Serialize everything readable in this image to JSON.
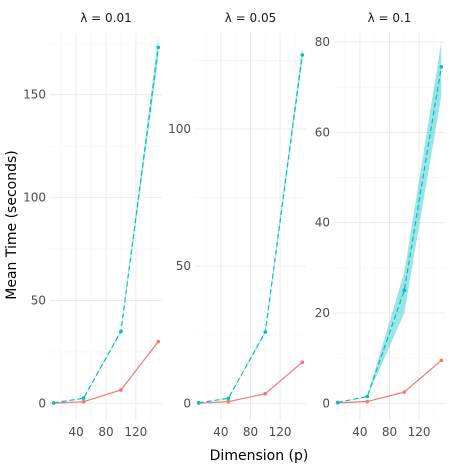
{
  "chart_data": {
    "type": "line",
    "xlabel": "Dimension (p)",
    "ylabel": "Mean Time (seconds)",
    "x_ticks": [
      40,
      80,
      120
    ],
    "panels": [
      {
        "title": "λ = 0.01",
        "ylim": [
          0,
          180
        ],
        "y_ticks": [
          0,
          50,
          100,
          150
        ],
        "series": [
          {
            "color": "#F8766D",
            "linestyle": "solid",
            "x": [
              10,
              50,
              100,
              150
            ],
            "y": [
              0.1,
              0.8,
              6.5,
              30.0
            ],
            "band": null
          },
          {
            "color": "#00BFC4",
            "linestyle": "dashed",
            "x": [
              10,
              50,
              100,
              150
            ],
            "y": [
              0.2,
              2.5,
              35.0,
              173.0
            ],
            "band": {
              "lower": [
                0.2,
                2.4,
                34.5,
                168.0
              ],
              "upper": [
                0.2,
                2.6,
                35.5,
                178.0
              ]
            }
          }
        ]
      },
      {
        "title": "λ = 0.05",
        "ylim": [
          0,
          135
        ],
        "y_ticks": [
          0,
          50,
          100
        ],
        "series": [
          {
            "color": "#F8766D",
            "linestyle": "solid",
            "x": [
              10,
              50,
              100,
              150
            ],
            "y": [
              0.1,
              0.6,
              3.5,
              15.0
            ],
            "band": null
          },
          {
            "color": "#00BFC4",
            "linestyle": "dashed",
            "x": [
              10,
              50,
              100,
              150
            ],
            "y": [
              0.2,
              1.8,
              26.0,
              127.0
            ],
            "band": {
              "lower": [
                0.2,
                1.7,
                25.5,
                125.0
              ],
              "upper": [
                0.2,
                1.9,
                26.5,
                130.0
              ]
            }
          }
        ]
      },
      {
        "title": "λ = 0.1",
        "ylim": [
          0,
          82
        ],
        "y_ticks": [
          0,
          20,
          40,
          60,
          80
        ],
        "series": [
          {
            "color": "#F8766D",
            "linestyle": "solid",
            "x": [
              10,
              50,
              100,
              150
            ],
            "y": [
              0.1,
              0.4,
              2.5,
              9.5
            ],
            "band": null
          },
          {
            "color": "#00BFC4",
            "linestyle": "dashed",
            "x": [
              10,
              50,
              100,
              150
            ],
            "y": [
              0.2,
              1.5,
              25.0,
              74.5
            ],
            "band": {
              "lower": [
                0.2,
                1.4,
                20.0,
                68.0
              ],
              "upper": [
                0.2,
                1.6,
                29.0,
                80.0
              ]
            }
          }
        ]
      }
    ]
  }
}
